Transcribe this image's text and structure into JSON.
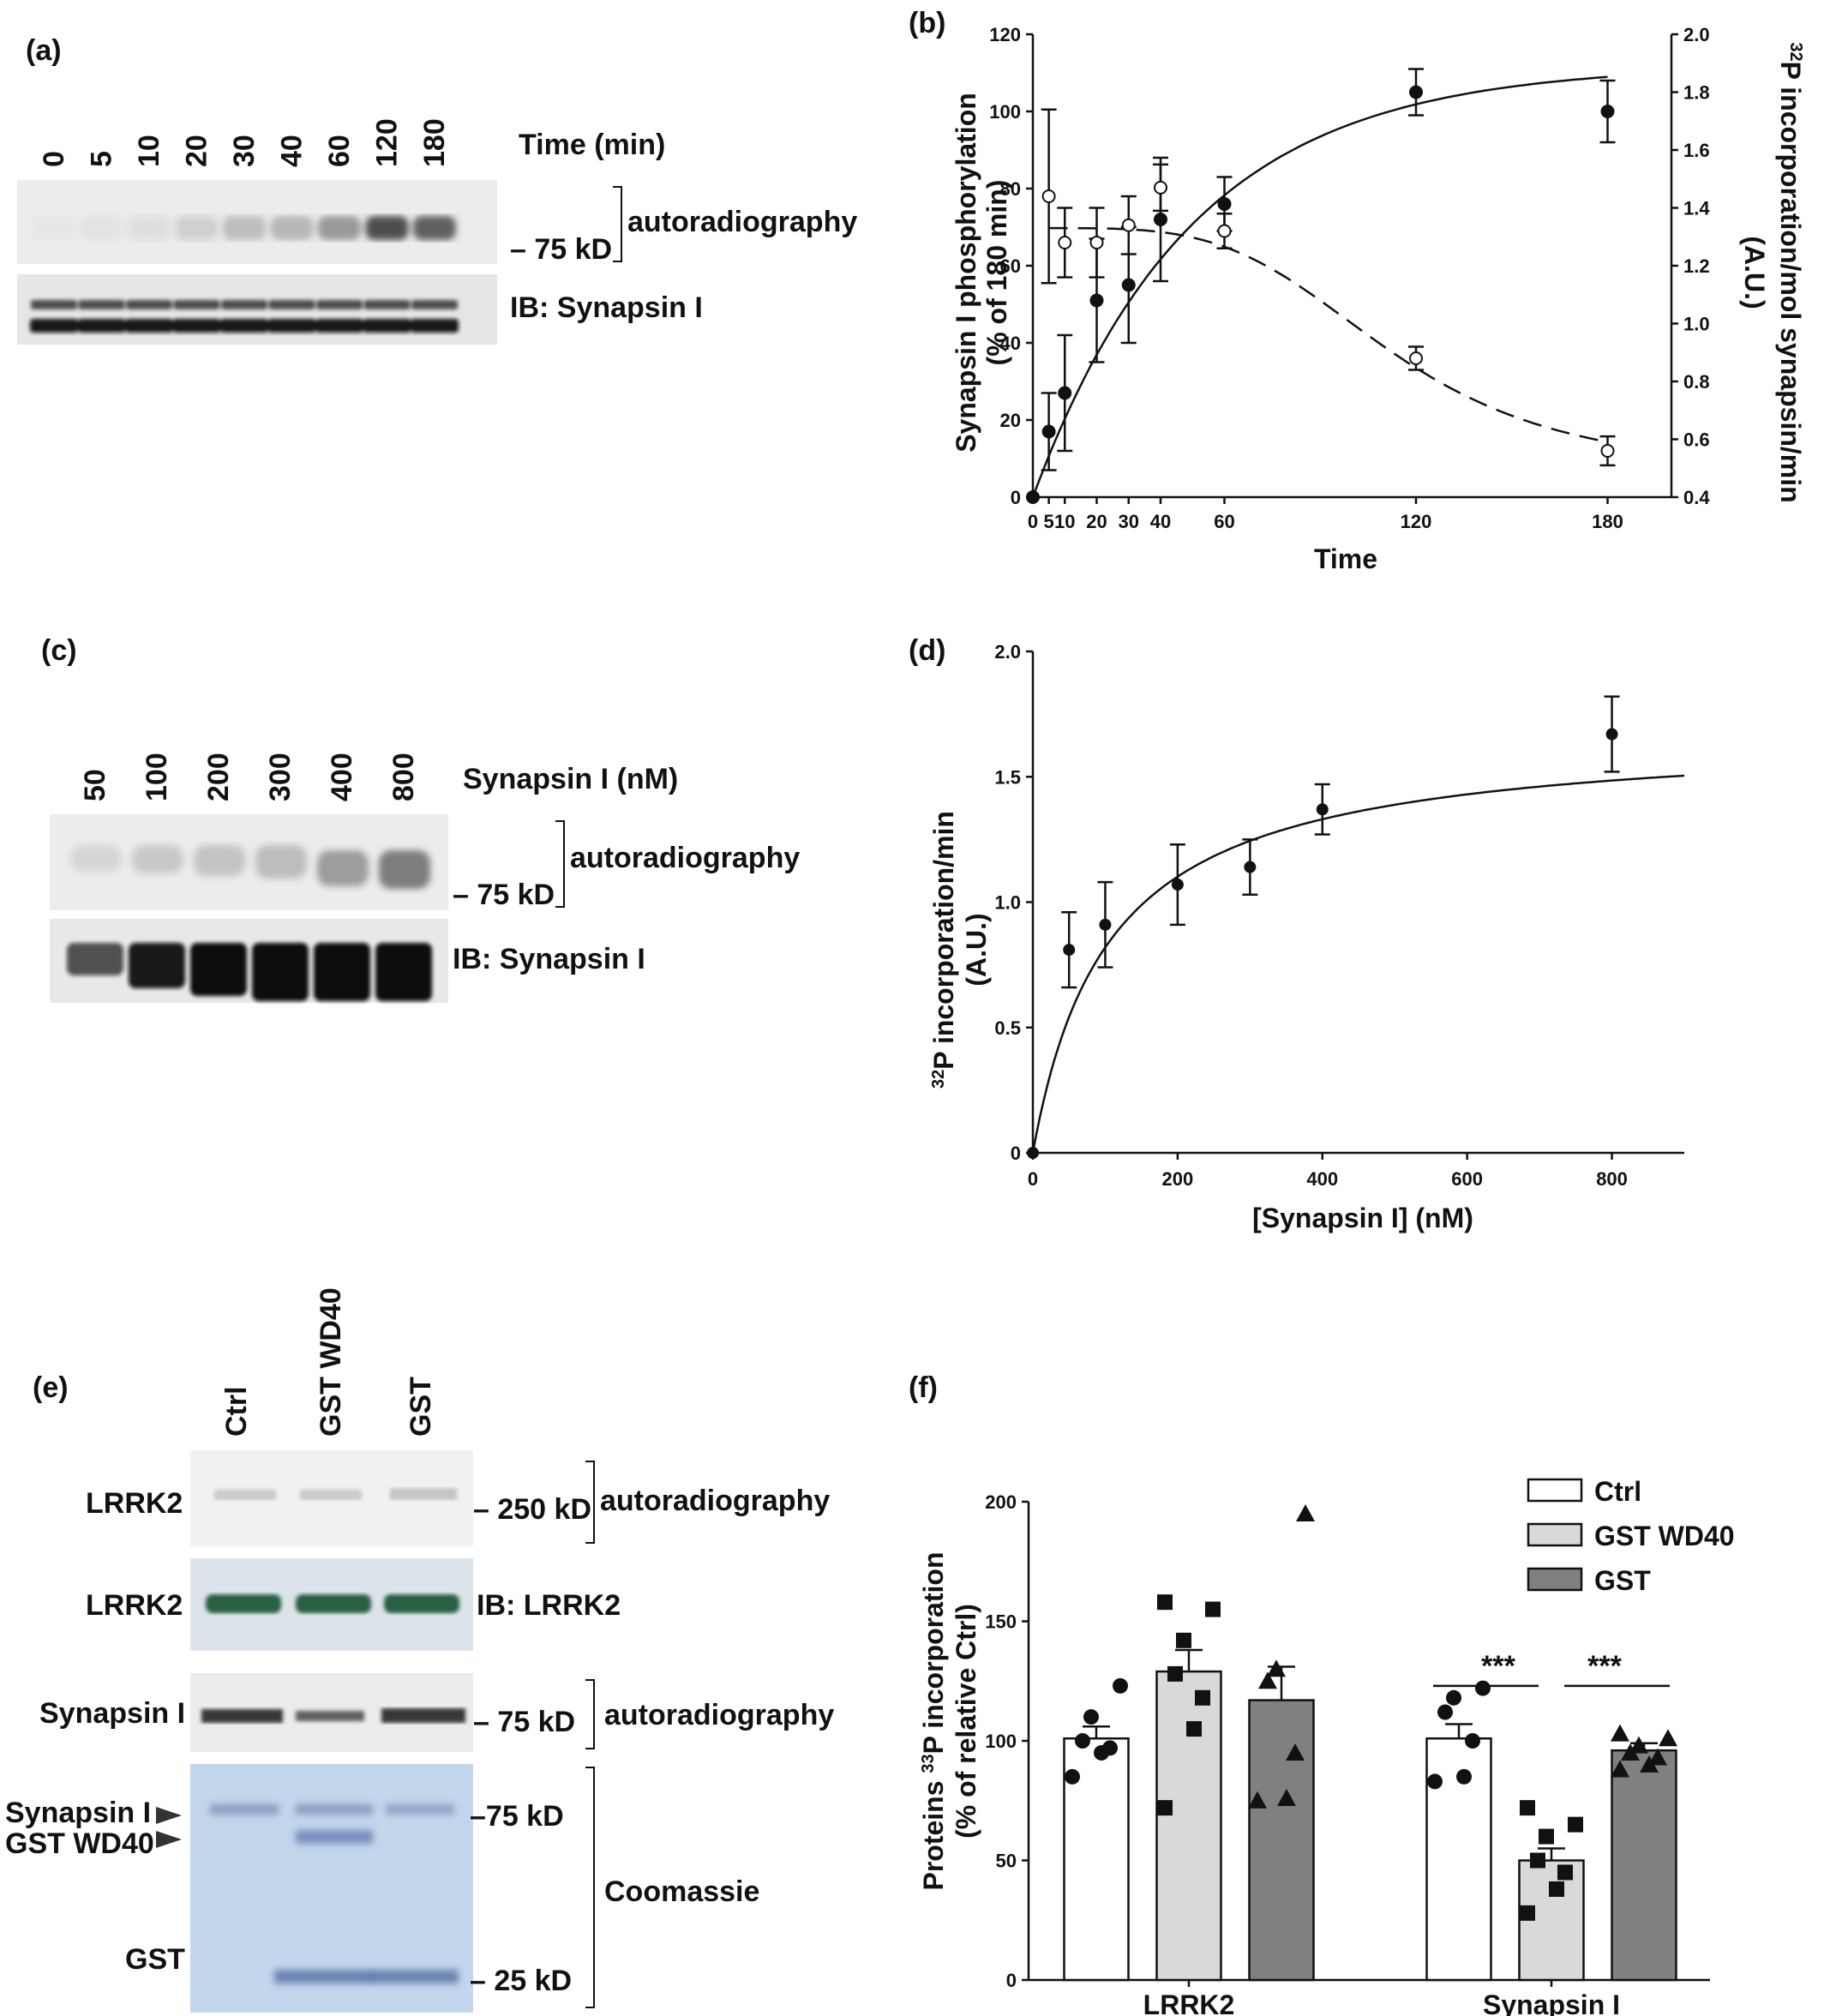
{
  "panel_labels": [
    "(a)",
    "(b)",
    "(c)",
    "(d)",
    "(e)",
    "(f)"
  ],
  "panel_a": {
    "lanes": [
      "0",
      "5",
      "10",
      "20",
      "30",
      "40",
      "60",
      "120",
      "180"
    ],
    "lanes_title": "Time (min)",
    "marker": "– 75 kD",
    "blot1_label": "autoradiography",
    "blot2_label": "IB: Synapsin I",
    "intensity_auto": [
      0.02,
      0.04,
      0.08,
      0.15,
      0.25,
      0.28,
      0.45,
      0.85,
      0.75
    ]
  },
  "panel_c": {
    "lanes": [
      "50",
      "100",
      "200",
      "300",
      "400",
      "800"
    ],
    "lanes_title": "Synapsin I (nM)",
    "marker": "– 75 kD",
    "blot1_label": "autoradiography",
    "blot2_label": "IB: Synapsin I",
    "intensity_auto": [
      0.12,
      0.18,
      0.22,
      0.25,
      0.42,
      0.6
    ],
    "intensity_ib": [
      0.3,
      0.55,
      0.7,
      0.95,
      1.0,
      1.0
    ]
  },
  "panel_e": {
    "lanes": [
      "Ctrl",
      "GST WD40",
      "GST"
    ],
    "rows": [
      {
        "left": "LRRK2",
        "right": "– 250 kD",
        "bracket": "autoradiography"
      },
      {
        "left": "LRRK2",
        "right": "IB: LRRK2"
      },
      {
        "left": "Synapsin I",
        "right": "– 75 kD",
        "bracket": "autoradiography"
      }
    ],
    "coomassie": {
      "left_labels": [
        "Synapsin I",
        "GST WD40",
        "GST"
      ],
      "markers": [
        "–75 kD",
        "– 25 kD"
      ],
      "bracket": "Coomassie"
    }
  },
  "chart_data": [
    {
      "panel": "(b)",
      "type": "scatter",
      "xlabel": "Time",
      "ylabel": "Synapsin I phosphorylation",
      "ylabel2": "(% of 180 min)",
      "y2label_sup": "32",
      "y2label": "P incorporation/mol synapsin/min",
      "y2label2": "(A.U.)",
      "x_ticks": [
        "0",
        "5",
        "10",
        "20",
        "30",
        "40",
        "60",
        "120",
        "180"
      ],
      "x_tick_values": [
        0,
        5,
        10,
        20,
        30,
        40,
        60,
        120,
        180
      ],
      "xlim": [
        0,
        200
      ],
      "ylim": [
        0,
        120
      ],
      "y_ticks": [
        0,
        20,
        40,
        60,
        80,
        100,
        120
      ],
      "y2lim": [
        0.4,
        2.0
      ],
      "y2_ticks": [
        "0.4",
        "0.6",
        "0.8",
        "1.0",
        "1.2",
        "1.4",
        "1.6",
        "1.8",
        "2.0"
      ],
      "series": [
        {
          "marker": "filled-circle",
          "axis": "left",
          "line": "solid",
          "x": [
            0,
            5,
            10,
            20,
            30,
            40,
            60,
            120,
            180
          ],
          "y": [
            0,
            17,
            27,
            51,
            55,
            72,
            76,
            105,
            100
          ],
          "err": [
            0,
            10,
            15,
            16,
            15,
            16,
            7,
            6,
            8
          ]
        },
        {
          "marker": "open-circle",
          "axis": "right",
          "line": "dashed",
          "x": [
            5,
            10,
            20,
            30,
            40,
            60,
            120,
            180
          ],
          "y": [
            1.44,
            1.28,
            1.28,
            1.34,
            1.47,
            1.32,
            0.88,
            0.56
          ],
          "err": [
            0.3,
            0.12,
            0.12,
            0.1,
            0.08,
            0.06,
            0.04,
            0.05
          ]
        }
      ]
    },
    {
      "panel": "(d)",
      "type": "scatter",
      "xlabel": "[Synapsin I] (nM)",
      "ylabel_sup": "32",
      "ylabel": "P incorporation/min",
      "ylabel2": "(A.U.)",
      "xlim": [
        0,
        900
      ],
      "x_ticks": [
        0,
        200,
        400,
        600,
        800
      ],
      "ylim": [
        0,
        2.0
      ],
      "y_ticks": [
        "0",
        "0.5",
        "1.0",
        "1.5",
        "2.0"
      ],
      "series": [
        {
          "marker": "filled-circle",
          "line": "solid-fit",
          "x": [
            0,
            50,
            100,
            200,
            300,
            400,
            800
          ],
          "y": [
            0,
            0.81,
            0.91,
            1.07,
            1.14,
            1.37,
            1.67
          ],
          "err": [
            0,
            0.15,
            0.17,
            0.16,
            0.11,
            0.1,
            0.15
          ]
        }
      ]
    },
    {
      "panel": "(f)",
      "type": "bar",
      "ylabel_sup": "33",
      "ylabel_pre": "Proteins ",
      "ylabel": "P incorporation",
      "ylabel2": "(% of relative Ctrl)",
      "ylim": [
        0,
        200
      ],
      "y_ticks": [
        0,
        50,
        100,
        150,
        200
      ],
      "categories": [
        "LRRK2",
        "Synapsin I"
      ],
      "series": [
        {
          "name": "Ctrl",
          "color": "#ffffff",
          "marker": "circle",
          "values": [
            101,
            101
          ],
          "sem": [
            5,
            6
          ],
          "points": [
            [
              85,
              95,
              97,
              100,
              110,
              123
            ],
            [
              83,
              85,
              100,
              112,
              118,
              122
            ]
          ]
        },
        {
          "name": "GST WD40",
          "color": "#d9d9d9",
          "marker": "square",
          "values": [
            129,
            50
          ],
          "sem": [
            9,
            5
          ],
          "points": [
            [
              72,
              105,
              118,
              128,
              142,
              155,
              158
            ],
            [
              28,
              38,
              45,
              50,
              60,
              65,
              72
            ]
          ]
        },
        {
          "name": "GST",
          "color": "#808080",
          "marker": "triangle",
          "values": [
            117,
            96
          ],
          "sem": [
            14,
            3
          ],
          "points": [
            [
              75,
              76,
              95,
              125,
              130,
              195
            ],
            [
              88,
              90,
              93,
              95,
              98,
              101,
              103
            ]
          ]
        }
      ],
      "significance": [
        "***",
        "***"
      ]
    }
  ]
}
